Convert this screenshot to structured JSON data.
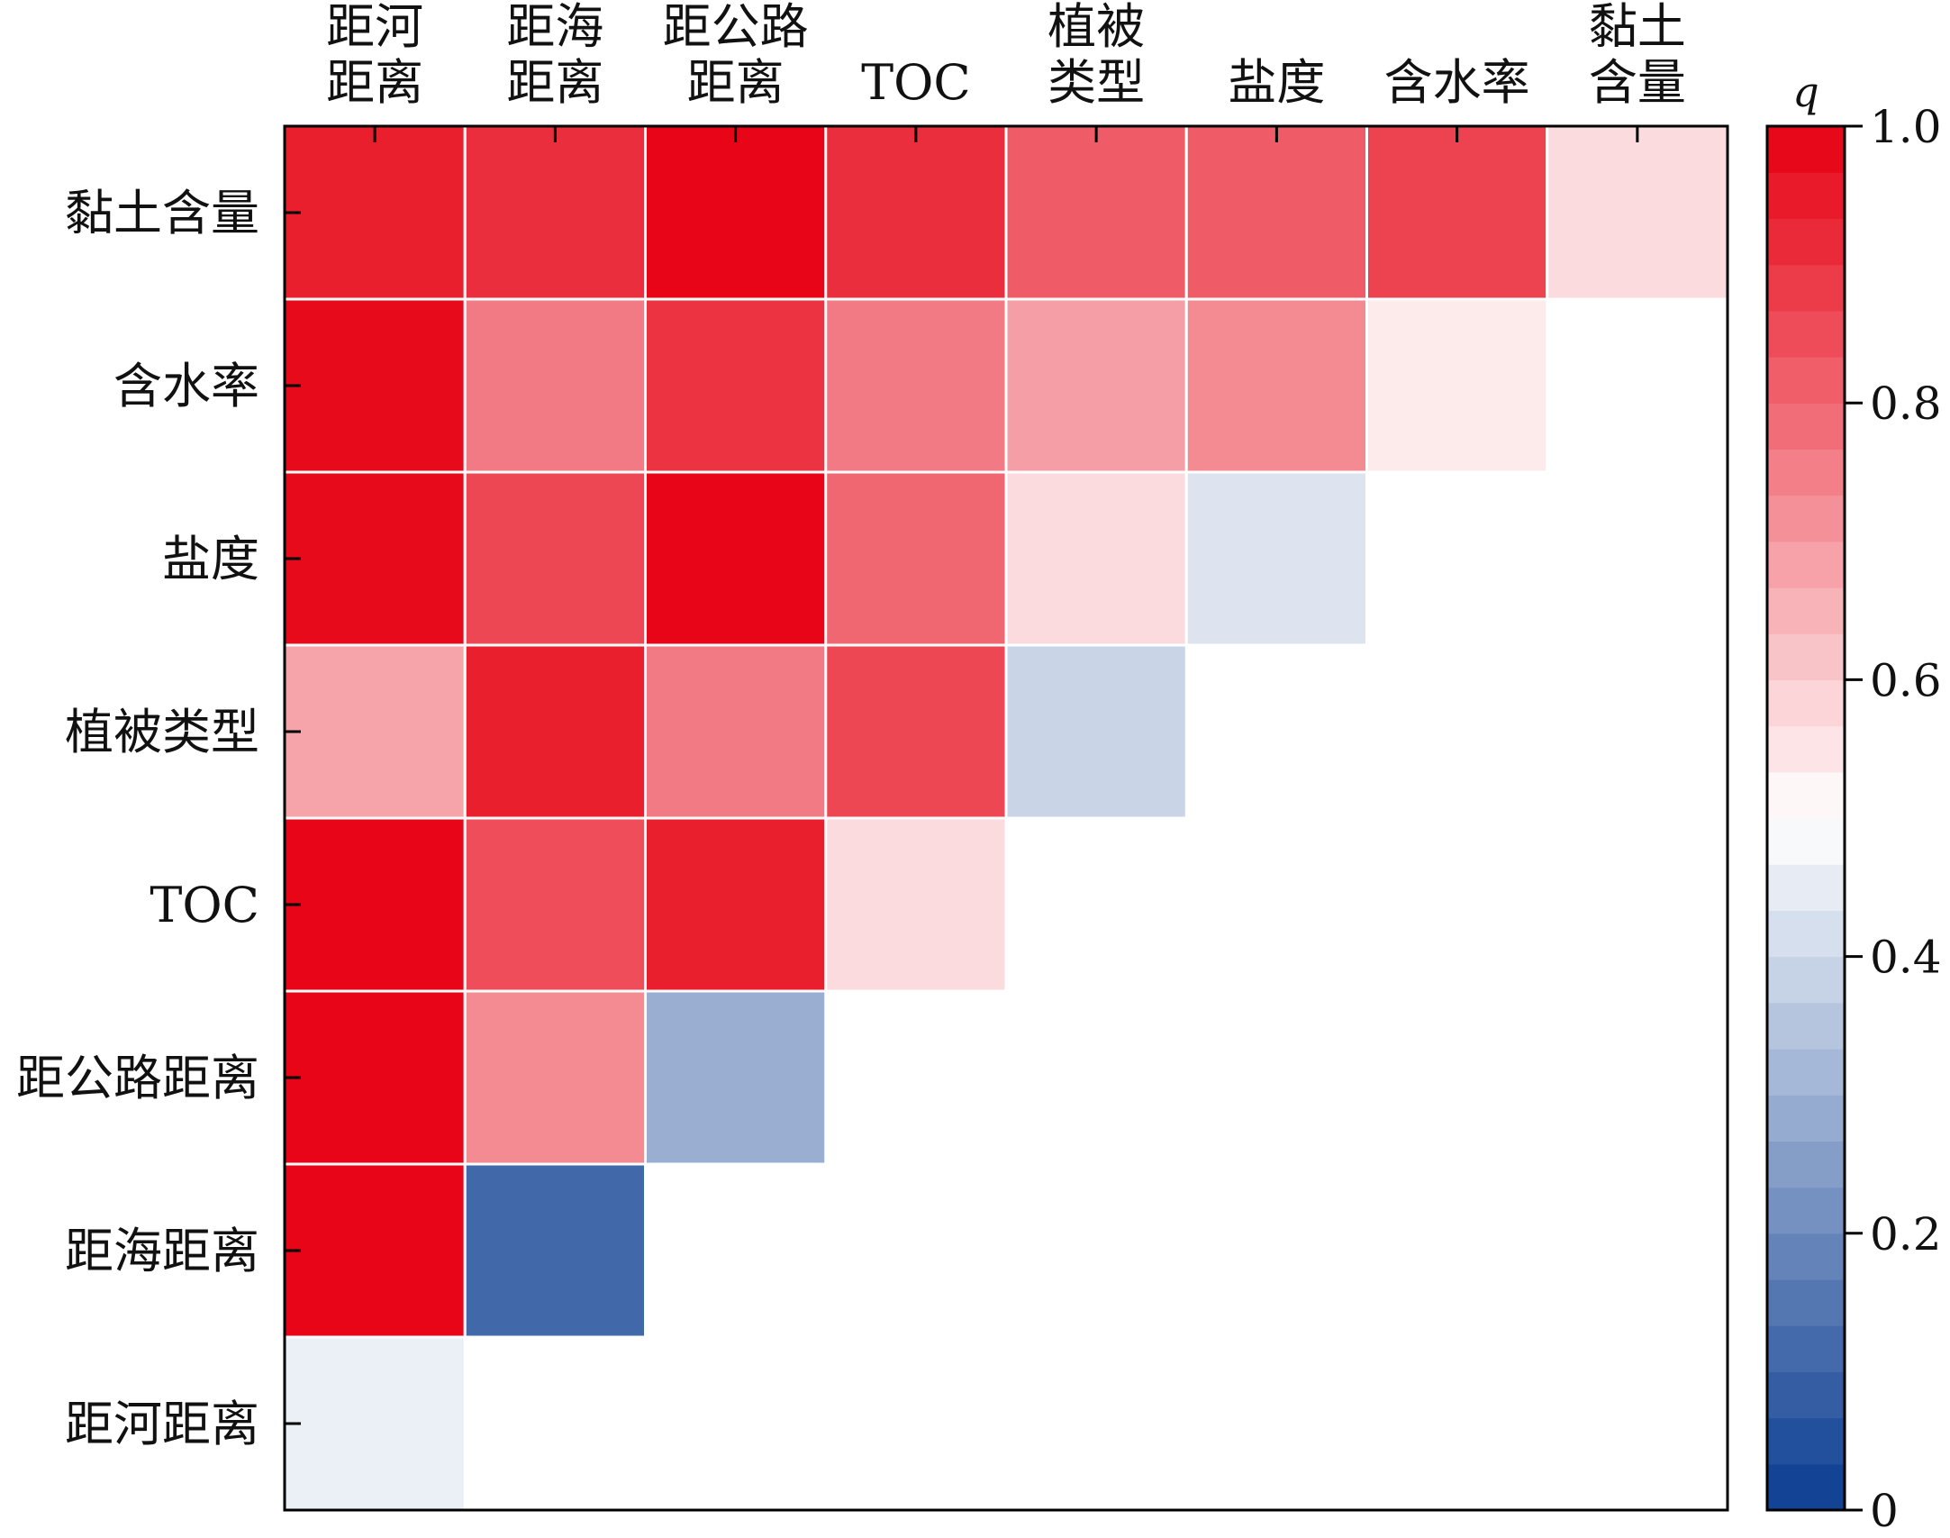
{
  "chart_data": {
    "type": "heatmap",
    "title": "",
    "xlabel": "",
    "ylabel": "",
    "colorbar_label": "q",
    "colorbar_range": [
      0,
      1.0
    ],
    "colorbar_ticks": [
      "0",
      "0.2",
      "0.4",
      "0.6",
      "0.8",
      "1.0"
    ],
    "colorbar_tick_values": [
      0,
      0.2,
      0.4,
      0.6,
      0.8,
      1.0
    ],
    "colorbar_levels": 30,
    "colors": {
      "low": "#0b3d91",
      "mid": "#ffffff",
      "high": "#e60012"
    },
    "x_categories": [
      [
        "距河",
        "距离"
      ],
      [
        "距海",
        "距离"
      ],
      [
        "距公路",
        "距离"
      ],
      [
        "TOC"
      ],
      [
        "植被",
        "类型"
      ],
      [
        "盐度"
      ],
      [
        "含水率"
      ],
      [
        "黏土",
        "含量"
      ]
    ],
    "y_categories": [
      "黏土含量",
      "含水率",
      "盐度",
      "植被类型",
      "TOC",
      "距公路距离",
      "距海距离",
      "距河距离"
    ],
    "values": [
      [
        0.94,
        0.91,
        0.99,
        0.91,
        0.82,
        0.82,
        0.87,
        0.57
      ],
      [
        0.98,
        0.76,
        0.9,
        0.76,
        0.69,
        0.73,
        0.54,
        null
      ],
      [
        0.98,
        0.86,
        0.99,
        0.8,
        0.57,
        0.43,
        null,
        null
      ],
      [
        0.68,
        0.94,
        0.76,
        0.86,
        0.39,
        null,
        null,
        null
      ],
      [
        0.99,
        0.85,
        0.94,
        0.57,
        null,
        null,
        null,
        null
      ],
      [
        0.99,
        0.73,
        0.29,
        null,
        null,
        null,
        null,
        null
      ],
      [
        0.99,
        0.11,
        null,
        null,
        null,
        null,
        null,
        null
      ],
      [
        0.46,
        null,
        null,
        null,
        null,
        null,
        null,
        null
      ]
    ]
  }
}
